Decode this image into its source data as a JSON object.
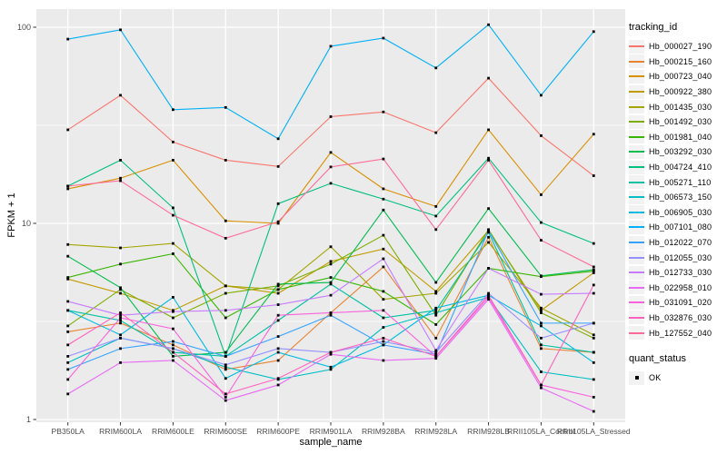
{
  "figure": {
    "panel_bg": "#EBEBEB",
    "grid_color": "#FFFFFF",
    "axis_text_color": "#4D4D4D",
    "tick_color": "#333333",
    "point_color": "#000000",
    "legend_key_bg": "#F2F2F2"
  },
  "legend": {
    "tracking_title": "tracking_id",
    "quant_title": "quant_status",
    "quant_items": [
      {
        "label": "OK",
        "marker": "black-square"
      }
    ]
  },
  "y_axis": {
    "tick_labels": [
      "100",
      "10",
      "1"
    ],
    "tick_values": [
      100,
      10,
      1
    ]
  },
  "chart_data": {
    "type": "line",
    "title": "",
    "xlabel": "sample_name",
    "ylabel": "FPKM + 1",
    "yscale": "log10",
    "ylim": [
      1,
      120
    ],
    "grid": true,
    "legend_position": "right",
    "marker": "small-black-square",
    "categories": [
      "PB350LA",
      "RRIM600LA",
      "RRIM600LE",
      "RRIM600SE",
      "RRIM600PE",
      "RRIM901LA",
      "RRIM928BA",
      "RRIM928LA",
      "RRIM928LB",
      "RRII105LA_Control",
      "RRII105LA_Stressed"
    ],
    "series": [
      {
        "name": "Hb_000027_190",
        "color": "#F8766D",
        "values": [
          30,
          45,
          26,
          21,
          19.5,
          35,
          37,
          29,
          55,
          28,
          17.5
        ]
      },
      {
        "name": "Hb_000215_160",
        "color": "#EA8331",
        "values": [
          2.8,
          3.1,
          2.4,
          1.8,
          2.0,
          3.5,
          6.0,
          2.6,
          8.5,
          2.3,
          2.2
        ]
      },
      {
        "name": "Hb_000723_040",
        "color": "#D89000",
        "values": [
          15,
          17,
          21,
          10.3,
          10,
          23,
          15,
          12.2,
          30,
          14,
          28.5
        ]
      },
      {
        "name": "Hb_000922_380",
        "color": "#C09B00",
        "values": [
          5.2,
          4.4,
          3.6,
          4.8,
          4.4,
          6.4,
          7.4,
          4.5,
          9.2,
          3.6,
          5.6
        ]
      },
      {
        "name": "Hb_001435_030",
        "color": "#A3A500",
        "values": [
          7.8,
          7.5,
          7.9,
          4.8,
          4.6,
          7.6,
          4.1,
          4.4,
          8.0,
          3.7,
          2.7
        ]
      },
      {
        "name": "Hb_001492_030",
        "color": "#7CAE00",
        "values": [
          3.0,
          4.6,
          3.3,
          4.4,
          4.8,
          6.2,
          8.7,
          3.4,
          9.3,
          3.5,
          2.6
        ]
      },
      {
        "name": "Hb_001981_040",
        "color": "#39B600",
        "values": [
          5.3,
          6.2,
          7.0,
          3.3,
          4.6,
          5.3,
          4.5,
          3.05,
          5.9,
          5.35,
          5.7
        ]
      },
      {
        "name": "Hb_003292_030",
        "color": "#00BB4E",
        "values": [
          6.8,
          4.7,
          2.1,
          2.2,
          4.9,
          5.0,
          11.7,
          5.0,
          11.9,
          5.4,
          5.8
        ]
      },
      {
        "name": "Hb_004724_410",
        "color": "#00BF7D",
        "values": [
          15.5,
          21,
          12,
          2.1,
          12.6,
          16,
          13.3,
          10.9,
          21.5,
          10.1,
          7.9
        ]
      },
      {
        "name": "Hb_005271_110",
        "color": "#00C1A3",
        "values": [
          3.6,
          3.2,
          2.2,
          2.1,
          3.2,
          4.9,
          3.3,
          3.6,
          9.0,
          2.4,
          2.2
        ]
      },
      {
        "name": "Hb_006573_150",
        "color": "#00BFC4",
        "values": [
          1.95,
          2.6,
          2.3,
          1.85,
          1.6,
          1.8,
          2.95,
          3.5,
          4.2,
          1.75,
          1.6
        ]
      },
      {
        "name": "Hb_006905_030",
        "color": "#00BAE0",
        "values": [
          3.6,
          2.7,
          4.2,
          1.62,
          2.2,
          1.85,
          2.4,
          3.7,
          4.3,
          3.0,
          1.95
        ]
      },
      {
        "name": "Hb_007101_080",
        "color": "#00B0F6",
        "values": [
          87,
          97,
          38,
          39,
          27,
          80,
          88,
          62,
          103,
          45,
          95
        ]
      },
      {
        "name": "Hb_012022_070",
        "color": "#35A2FF",
        "values": [
          1.8,
          2.3,
          2.5,
          2.1,
          2.65,
          3.4,
          2.4,
          2.15,
          9.2,
          3.1,
          3.1
        ]
      },
      {
        "name": "Hb_012055_030",
        "color": "#9590FF",
        "values": [
          2.1,
          2.6,
          2.3,
          1.9,
          2.3,
          2.2,
          2.5,
          2.2,
          4.4,
          2.6,
          3.1
        ]
      },
      {
        "name": "Hb_012733_030",
        "color": "#C77CFF",
        "values": [
          4.0,
          3.4,
          3.55,
          3.6,
          3.85,
          4.3,
          6.6,
          2.25,
          5.9,
          4.35,
          4.4
        ]
      },
      {
        "name": "Hb_022958_010",
        "color": "#E76BF3",
        "values": [
          1.35,
          1.95,
          2.0,
          1.25,
          1.5,
          2.15,
          2.0,
          2.05,
          4.1,
          1.45,
          1.1
        ]
      },
      {
        "name": "Hb_031091_020",
        "color": "#FA62DB",
        "values": [
          1.6,
          3.3,
          2.9,
          1.3,
          3.4,
          3.5,
          3.6,
          2.1,
          4.2,
          1.5,
          1.3
        ]
      },
      {
        "name": "Hb_032876_030",
        "color": "#FF62BC",
        "values": [
          2.4,
          3.5,
          2.2,
          1.35,
          1.62,
          2.2,
          2.6,
          2.1,
          4.3,
          1.5,
          4.85
        ]
      },
      {
        "name": "Hb_127552_040",
        "color": "#FF6A98",
        "values": [
          15.5,
          16.5,
          11,
          8.4,
          10.2,
          19.4,
          21.3,
          9.3,
          21,
          8.2,
          6.0
        ]
      }
    ]
  }
}
